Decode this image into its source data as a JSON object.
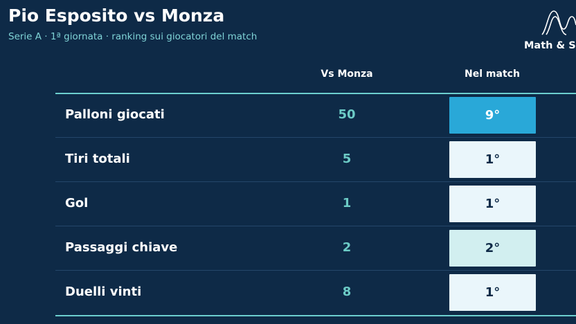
{
  "header": {
    "title": "Pio Esposito vs Monza",
    "subtitle": "Serie A · 1ª giornata · ranking sui giocatori del match",
    "brand": "Math & Sp"
  },
  "table": {
    "columns": [
      "Vs Monza",
      "Nel match"
    ],
    "rows": [
      {
        "label": "Palloni giocati",
        "value": 50,
        "rank": "9°",
        "color": "#29a8d8",
        "text_color": "#ffffff"
      },
      {
        "label": "Tiri totali",
        "value": 5,
        "rank": "1°",
        "color": "#eaf6fb",
        "text_color": "#0e2a47"
      },
      {
        "label": "Gol",
        "value": 1,
        "rank": "1°",
        "color": "#eaf6fb",
        "text_color": "#0e2a47"
      },
      {
        "label": "Passaggi chiave",
        "value": 2,
        "rank": "2°",
        "color": "#d2eff0",
        "text_color": "#0e2a47"
      },
      {
        "label": "Duelli vinti",
        "value": 8,
        "rank": "1°",
        "color": "#eaf6fb",
        "text_color": "#0e2a47"
      }
    ]
  }
}
